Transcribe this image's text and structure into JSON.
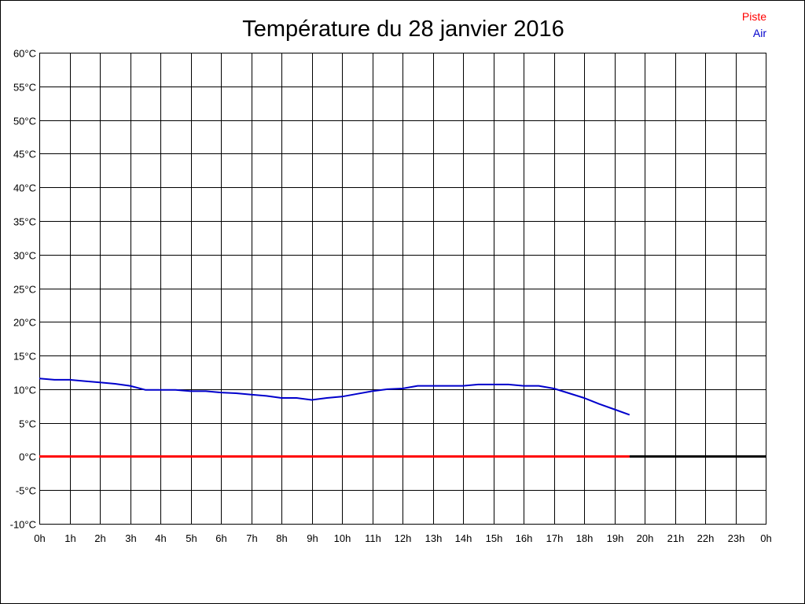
{
  "chart_data": {
    "type": "line",
    "title": "Température du 28 janvier 2016",
    "xlabel": "",
    "ylabel": "",
    "x_ticks": [
      "0h",
      "1h",
      "2h",
      "3h",
      "4h",
      "5h",
      "6h",
      "7h",
      "8h",
      "9h",
      "10h",
      "11h",
      "12h",
      "13h",
      "14h",
      "15h",
      "16h",
      "17h",
      "18h",
      "19h",
      "20h",
      "21h",
      "22h",
      "23h",
      "0h"
    ],
    "y_ticks": [
      "60°C",
      "55°C",
      "50°C",
      "45°C",
      "40°C",
      "35°C",
      "30°C",
      "25°C",
      "20°C",
      "15°C",
      "10°C",
      "5°C",
      "0°C",
      "-5°C",
      "-10°C"
    ],
    "xlim": [
      0,
      24
    ],
    "ylim": [
      -10,
      60
    ],
    "grid": true,
    "legend_position": "top-right",
    "series": [
      {
        "name": "Piste",
        "color": "#ff0000",
        "x": [
          0,
          19.5
        ],
        "y": [
          0,
          0
        ]
      },
      {
        "name": "Air",
        "color": "#0000cc",
        "x": [
          0,
          0.5,
          1,
          1.5,
          2,
          2.5,
          3,
          3.5,
          4,
          4.5,
          5,
          5.5,
          6,
          6.5,
          7,
          7.5,
          8,
          8.5,
          9,
          9.5,
          10,
          10.5,
          11,
          11.5,
          12,
          12.5,
          13,
          13.5,
          14,
          14.5,
          15,
          15.5,
          16,
          16.5,
          17,
          17.5,
          18,
          18.5,
          19,
          19.5
        ],
        "y": [
          11.6,
          11.4,
          11.4,
          11.2,
          11.0,
          10.8,
          10.5,
          9.9,
          9.9,
          9.9,
          9.7,
          9.7,
          9.5,
          9.4,
          9.2,
          9.0,
          8.7,
          8.7,
          8.4,
          8.7,
          8.9,
          9.3,
          9.7,
          10.0,
          10.1,
          10.5,
          10.5,
          10.5,
          10.5,
          10.7,
          10.7,
          10.7,
          10.5,
          10.5,
          10.1,
          9.4,
          8.7,
          7.8,
          7.0,
          6.2
        ]
      }
    ],
    "baseline": {
      "color": "#000000",
      "x": [
        19.5,
        24
      ],
      "y": [
        0,
        0
      ]
    }
  }
}
